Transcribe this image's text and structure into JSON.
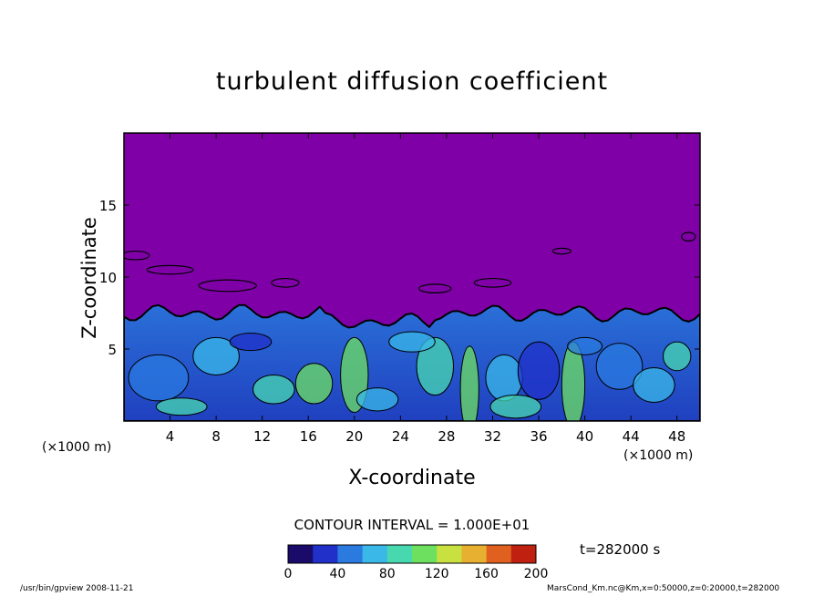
{
  "chart_data": {
    "type": "heatmap",
    "title": "turbulent diffusion coefficient",
    "xlabel": "X-coordinate",
    "ylabel": "Z-coordinate",
    "x_unit": "(×1000 m)",
    "z_unit": "(×1000 m)",
    "xlim": [
      0,
      50
    ],
    "ylim": [
      0,
      20
    ],
    "xticks": [
      4,
      8,
      12,
      16,
      20,
      24,
      28,
      32,
      36,
      40,
      44,
      48
    ],
    "yticks": [
      5,
      10,
      15
    ],
    "boundary_layer_top_km": 7.5,
    "contour_interval_label": "CONTOUR INTERVAL = 1.000E+01",
    "time_label": "t=282000 s",
    "colorbar": {
      "range": [
        0,
        200
      ],
      "ticks": [
        0,
        40,
        80,
        120,
        160,
        200
      ],
      "colors": [
        "#1a0a6a",
        "#2030c8",
        "#2a7ae0",
        "#3ab8e8",
        "#48d8b0",
        "#6ee060",
        "#c8e040",
        "#e8b030",
        "#e06020",
        "#c02010"
      ]
    },
    "background_color": "#8000a8"
  },
  "footer": {
    "left": "/usr/bin/gpview   2008-11-21",
    "right": "MarsCond_Km.nc@Km,x=0:50000,z=0:20000,t=282000"
  }
}
